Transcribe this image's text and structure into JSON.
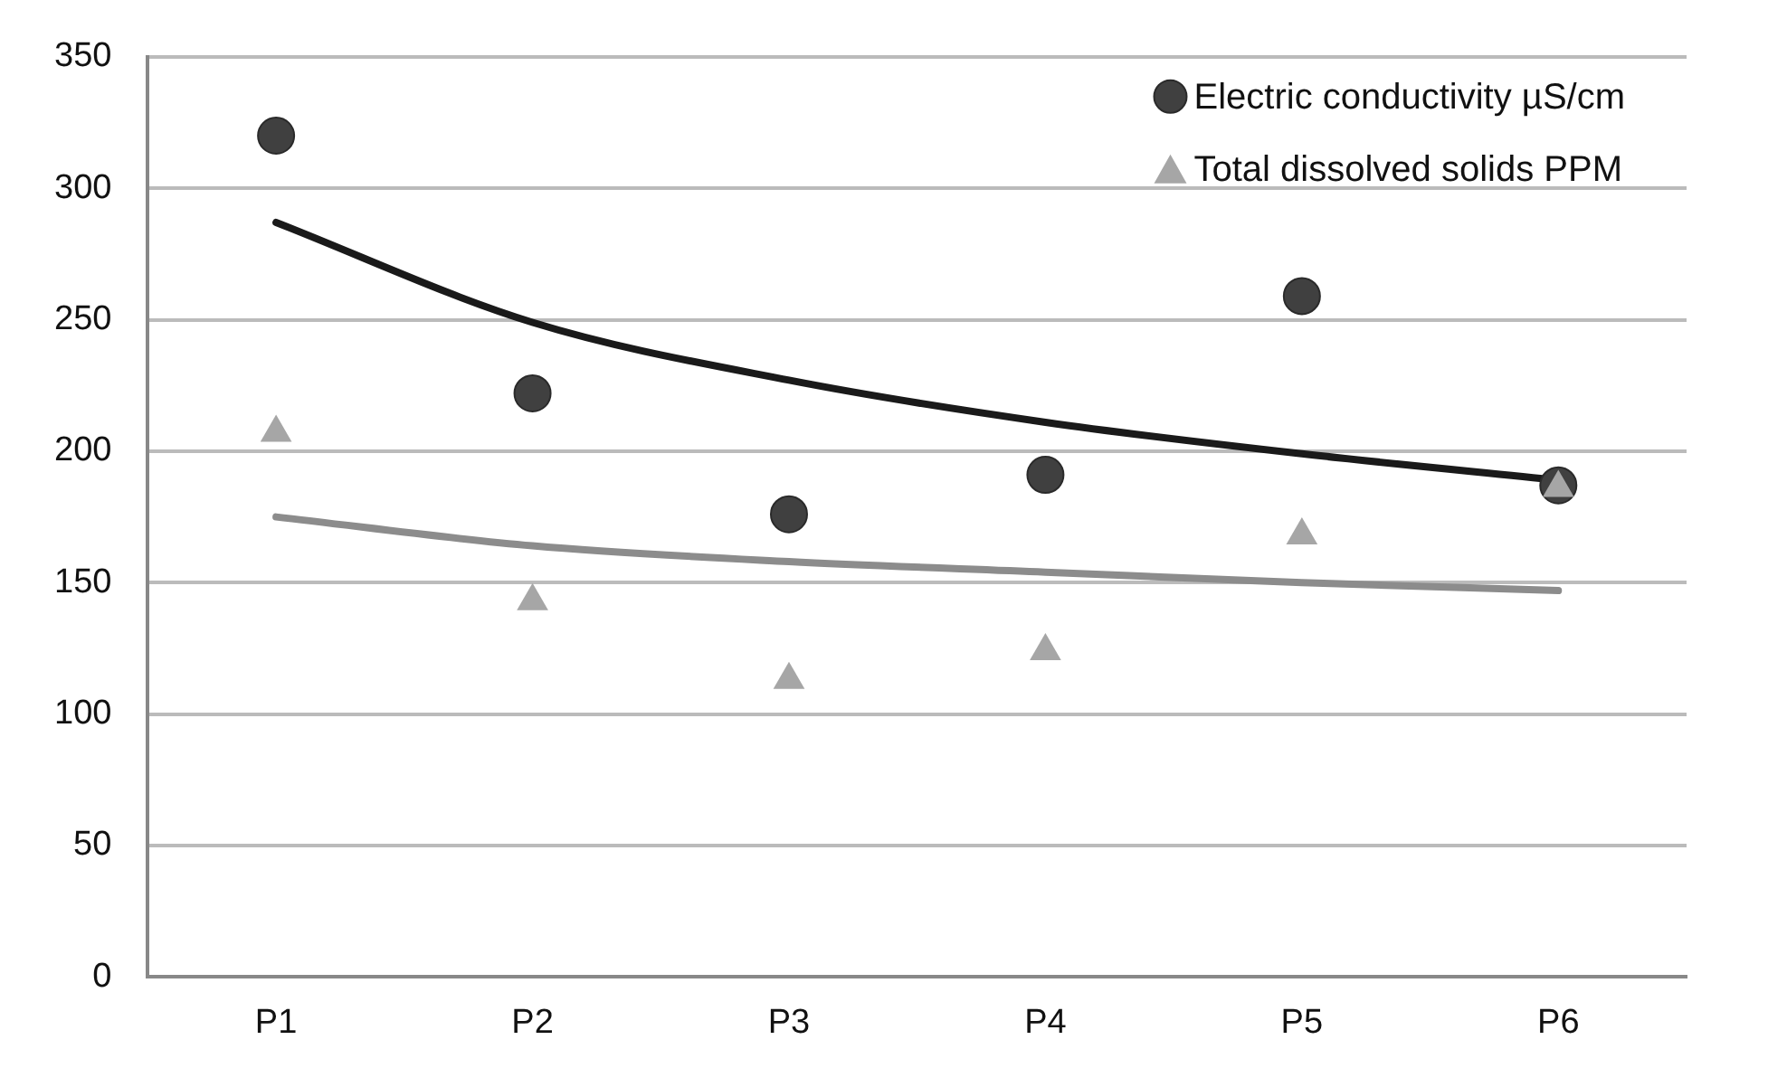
{
  "chart_data": {
    "type": "scatter",
    "categories": [
      "P1",
      "P2",
      "P3",
      "P4",
      "P5",
      "P6"
    ],
    "series": [
      {
        "name": "Electric conductivity µS/cm",
        "type": "scatter",
        "marker": "circle",
        "color": "#404040",
        "values": [
          320,
          222,
          176,
          191,
          259,
          187
        ]
      },
      {
        "name": "Total dissolved solids PPM",
        "type": "scatter",
        "marker": "triangle",
        "color": "#a6a6a6",
        "values": [
          207,
          143,
          113,
          124,
          168,
          186
        ]
      },
      {
        "type": "line",
        "marker": "none",
        "color": "#1a1a1a",
        "values": [
          287,
          249,
          227,
          211,
          199,
          189
        ]
      },
      {
        "type": "line",
        "marker": "none",
        "color": "#8c8c8c",
        "values": [
          175,
          164,
          158,
          154,
          150,
          147
        ]
      }
    ],
    "ylim": [
      0,
      350
    ],
    "yticks": [
      0,
      50,
      100,
      150,
      200,
      250,
      300,
      350
    ],
    "grid": "y",
    "legend": "top right"
  }
}
